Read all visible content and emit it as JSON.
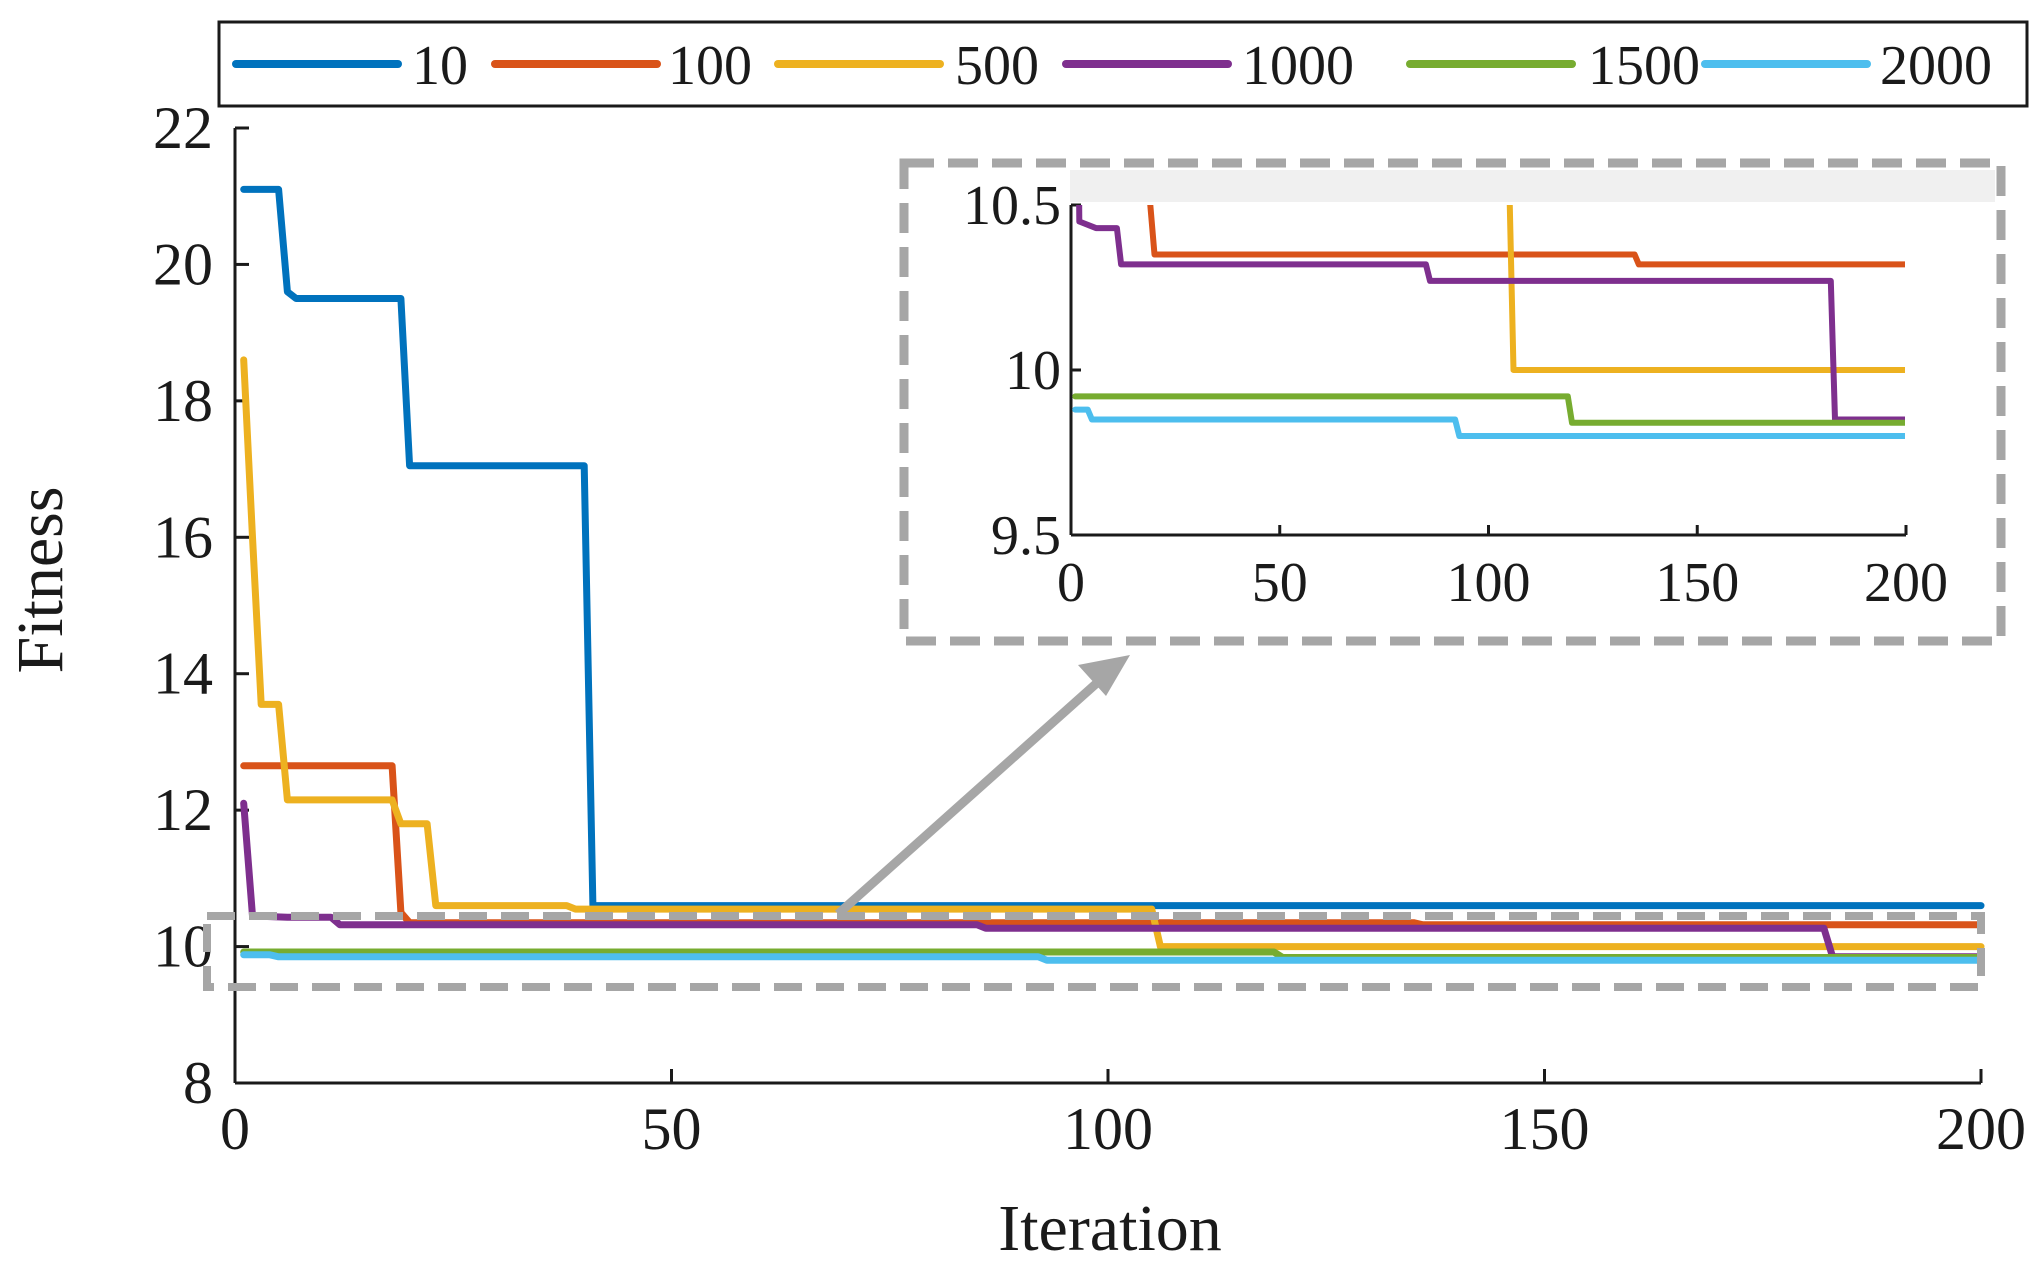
{
  "chart_data": [
    {
      "type": "line",
      "title": "",
      "xlabel": "Iteration",
      "ylabel": "Fitness",
      "xlim": [
        0,
        200
      ],
      "ylim": [
        8,
        22
      ],
      "xticks": [
        0,
        50,
        100,
        150,
        200
      ],
      "yticks": [
        8,
        10,
        12,
        14,
        16,
        18,
        20,
        22
      ],
      "legend_position": "top",
      "series": [
        {
          "name": "10",
          "color": "#0072BD",
          "x": [
            1,
            5,
            6,
            7,
            19,
            20,
            40,
            41,
            200
          ],
          "y": [
            21.1,
            21.1,
            19.6,
            19.5,
            19.5,
            17.05,
            17.05,
            10.6,
            10.6
          ]
        },
        {
          "name": "100",
          "color": "#D95319",
          "x": [
            1,
            18,
            19,
            20,
            135,
            136,
            200
          ],
          "y": [
            12.65,
            12.65,
            10.5,
            10.35,
            10.35,
            10.32,
            10.32
          ]
        },
        {
          "name": "500",
          "color": "#EDB120",
          "x": [
            1,
            2,
            3,
            5,
            6,
            18,
            19,
            22,
            23,
            38,
            39,
            105,
            106,
            200
          ],
          "y": [
            18.6,
            16.0,
            13.55,
            13.55,
            12.15,
            12.15,
            11.8,
            11.8,
            10.6,
            10.6,
            10.55,
            10.55,
            10.0,
            10.0
          ]
        },
        {
          "name": "1000",
          "color": "#7E2F8E",
          "x": [
            1,
            2,
            6,
            11,
            12,
            85,
            86,
            182,
            183,
            200
          ],
          "y": [
            12.1,
            10.45,
            10.43,
            10.43,
            10.32,
            10.32,
            10.27,
            10.27,
            9.85,
            9.85
          ]
        },
        {
          "name": "1500",
          "color": "#77AC30",
          "x": [
            1,
            119,
            120,
            200
          ],
          "y": [
            9.92,
            9.92,
            9.84,
            9.84
          ]
        },
        {
          "name": "2000",
          "color": "#4DBEEE",
          "x": [
            1,
            4,
            5,
            92,
            93,
            200
          ],
          "y": [
            9.88,
            9.88,
            9.85,
            9.85,
            9.8,
            9.8
          ]
        }
      ]
    },
    {
      "type": "line",
      "title": "",
      "role": "zoom-inset",
      "xlim": [
        0,
        200
      ],
      "ylim": [
        9.5,
        10.5
      ],
      "xticks": [
        0,
        50,
        100,
        150,
        200
      ],
      "yticks": [
        9.5,
        10,
        10.5
      ],
      "zoom_region": {
        "xlim": [
          0,
          200
        ],
        "ylim": [
          9.5,
          10.5
        ]
      }
    }
  ],
  "legend": [
    "10",
    "100",
    "500",
    "1000",
    "1500",
    "2000"
  ],
  "labels": {
    "ylabel": "Fitness",
    "xlabel": "Iteration",
    "x_ticks": [
      "0",
      "50",
      "100",
      "150",
      "200"
    ],
    "y_ticks": [
      "8",
      "10",
      "12",
      "14",
      "16",
      "18",
      "20",
      "22"
    ],
    "inset_x_ticks": [
      "0",
      "50",
      "100",
      "150",
      "200"
    ],
    "inset_y_ticks": [
      "9.5",
      "10",
      "10.5"
    ]
  },
  "colors": {
    "axis": "#1a1a1a",
    "zoom_box": "#a6a6a6",
    "arrow": "#a6a6a6"
  }
}
